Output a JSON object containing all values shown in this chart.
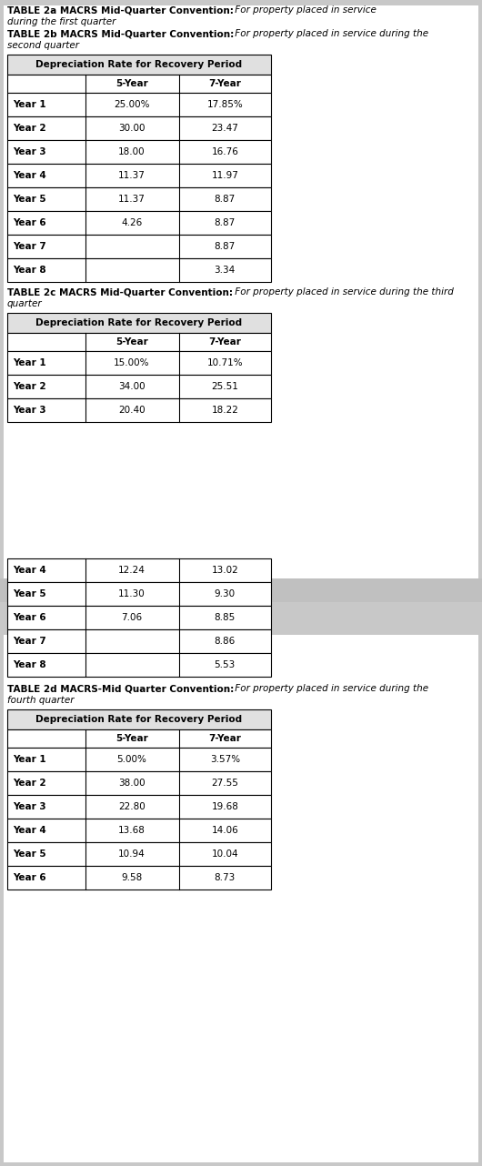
{
  "page_bg": "#c8c8c8",
  "content_bg": "#ffffff",
  "table2a_line1_bold": "TABLE 2a MACRS Mid-Quarter Convention:",
  "table2a_line1_italic": " For property placed in service",
  "table2a_line2_italic": "during the first quarter",
  "table2b_line1_bold": "TABLE 2b MACRS Mid-Quarter Convention:",
  "table2b_line1_italic": " For property placed in service during the",
  "table2b_line2_italic": "second quarter",
  "table2b_header": "Depreciation Rate for Recovery Period",
  "table2b_cols": [
    "",
    "5-Year",
    "7-Year"
  ],
  "table2b_rows": [
    [
      "Year 1",
      "25.00%",
      "17.85%"
    ],
    [
      "Year 2",
      "30.00",
      "23.47"
    ],
    [
      "Year 3",
      "18.00",
      "16.76"
    ],
    [
      "Year 4",
      "11.37",
      "11.97"
    ],
    [
      "Year 5",
      "11.37",
      "8.87"
    ],
    [
      "Year 6",
      "4.26",
      "8.87"
    ],
    [
      "Year 7",
      "",
      "8.87"
    ],
    [
      "Year 8",
      "",
      "3.34"
    ]
  ],
  "table2c_line1_bold": "TABLE 2c MACRS Mid-Quarter Convention:",
  "table2c_line1_italic": " For property placed in service during the third",
  "table2c_line2_italic": "quarter",
  "table2c_header": "Depreciation Rate for Recovery Period",
  "table2c_cols": [
    "",
    "5-Year",
    "7-Year"
  ],
  "table2c_rows_top": [
    [
      "Year 1",
      "15.00%",
      "10.71%"
    ],
    [
      "Year 2",
      "34.00",
      "25.51"
    ],
    [
      "Year 3",
      "20.40",
      "18.22"
    ]
  ],
  "table2c_rows_bottom": [
    [
      "Year 4",
      "12.24",
      "13.02"
    ],
    [
      "Year 5",
      "11.30",
      "9.30"
    ],
    [
      "Year 6",
      "7.06",
      "8.85"
    ],
    [
      "Year 7",
      "",
      "8.86"
    ],
    [
      "Year 8",
      "",
      "5.53"
    ]
  ],
  "table2d_line1_bold": "TABLE 2d MACRS-Mid Quarter Convention:",
  "table2d_line1_italic": " For property placed in service during the",
  "table2d_line2_italic": "fourth quarter",
  "table2d_header": "Depreciation Rate for Recovery Period",
  "table2d_cols": [
    "",
    "5-Year",
    "7-Year"
  ],
  "table2d_rows": [
    [
      "Year 1",
      "5.00%",
      "3.57%"
    ],
    [
      "Year 2",
      "38.00",
      "27.55"
    ],
    [
      "Year 3",
      "22.80",
      "19.68"
    ],
    [
      "Year 4",
      "13.68",
      "14.06"
    ],
    [
      "Year 5",
      "10.94",
      "10.04"
    ],
    [
      "Year 6",
      "9.58",
      "8.73"
    ]
  ],
  "border_color": "#000000",
  "header_bg": "#e0e0e0",
  "text_color": "#000000"
}
